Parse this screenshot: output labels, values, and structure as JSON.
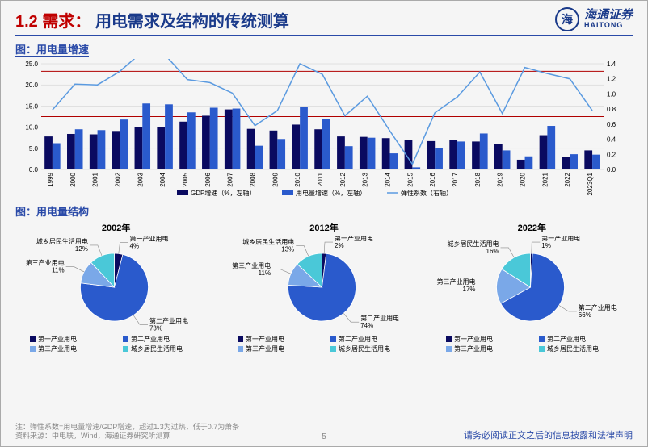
{
  "header": {
    "section_no": "1.2",
    "section_name": "需求：",
    "title_rest": "用电需求及结构的传统测算",
    "logo_cn": "海通证券",
    "logo_en": "HAITONG",
    "logo_symbol": "海"
  },
  "chart1": {
    "label": "图：用电量增速",
    "type": "bar_line_dual_axis",
    "x_labels": [
      "1999",
      "2000",
      "2001",
      "2002",
      "2003",
      "2004",
      "2005",
      "2006",
      "2007",
      "2008",
      "2009",
      "2010",
      "2011",
      "2012",
      "2013",
      "2014",
      "2015",
      "2016",
      "2017",
      "2018",
      "2019",
      "2020",
      "2021",
      "2022",
      "2023Q1"
    ],
    "y_left": {
      "min": 0,
      "max": 25,
      "step": 5
    },
    "y_right": {
      "min": 0,
      "max": 1.4,
      "step": 0.2
    },
    "ref_lines": [
      1.3,
      0.7
    ],
    "ref_line_color": "#b00000",
    "series": {
      "gdp": {
        "name": "GDP增速（%，左轴）",
        "color": "#0a0a60",
        "values": [
          7.8,
          8.4,
          8.3,
          9.1,
          10.0,
          10.1,
          11.3,
          12.7,
          14.2,
          9.6,
          9.2,
          10.6,
          9.5,
          7.8,
          7.7,
          7.4,
          6.9,
          6.7,
          6.9,
          6.6,
          6.1,
          2.3,
          8.1,
          3.0,
          4.5
        ]
      },
      "elec": {
        "name": "用电量增速（%，左轴）",
        "color": "#2a5acc",
        "values": [
          6.2,
          9.5,
          9.3,
          11.8,
          15.6,
          15.4,
          13.5,
          14.6,
          14.4,
          5.6,
          7.2,
          14.8,
          12.0,
          5.5,
          7.5,
          3.8,
          0.5,
          5.0,
          6.6,
          8.5,
          4.5,
          3.1,
          10.3,
          3.6,
          3.5
        ]
      },
      "elastic": {
        "name": "弹性系数（右轴）",
        "color": "#5a9ae0",
        "values": [
          0.79,
          1.13,
          1.12,
          1.3,
          1.56,
          1.52,
          1.19,
          1.15,
          1.01,
          0.58,
          0.78,
          1.4,
          1.26,
          0.71,
          0.97,
          0.51,
          0.07,
          0.75,
          0.96,
          1.29,
          0.74,
          1.35,
          1.27,
          1.2,
          0.78
        ]
      }
    }
  },
  "chart2": {
    "label": "图：用电量结构",
    "type": "pie_triple",
    "colors": {
      "primary": "#0a0a60",
      "secondary": "#2a5acc",
      "tertiary": "#7aa8e8",
      "residential": "#4ac8d8"
    },
    "segment_names": {
      "primary": "第一产业用电",
      "secondary": "第二产业用电",
      "tertiary": "第三产业用电",
      "residential": "城乡居民生活用电"
    },
    "pies": [
      {
        "year": "2002年",
        "segments": [
          {
            "key": "primary",
            "pct": 4
          },
          {
            "key": "secondary",
            "pct": 73
          },
          {
            "key": "tertiary",
            "pct": 11
          },
          {
            "key": "residential",
            "pct": 12
          }
        ]
      },
      {
        "year": "2012年",
        "segments": [
          {
            "key": "primary",
            "pct": 2
          },
          {
            "key": "secondary",
            "pct": 74
          },
          {
            "key": "tertiary",
            "pct": 11
          },
          {
            "key": "residential",
            "pct": 13
          }
        ]
      },
      {
        "year": "2022年",
        "segments": [
          {
            "key": "primary",
            "pct": 1
          },
          {
            "key": "secondary",
            "pct": 66
          },
          {
            "key": "tertiary",
            "pct": 17
          },
          {
            "key": "residential",
            "pct": 16
          }
        ]
      }
    ],
    "legend": [
      "第一产业用电",
      "第二产业用电",
      "第三产业用电",
      "城乡居民生活用电"
    ]
  },
  "footer": {
    "note1": "注：弹性系数=用电量增速/GDP增速，超过1.3为过热，低于0.7为萧条",
    "note2": "资料来源：中电联，Wind，海通证券研究所测算",
    "page": "5",
    "disclaimer": "请务必阅读正文之后的信息披露和法律声明"
  }
}
